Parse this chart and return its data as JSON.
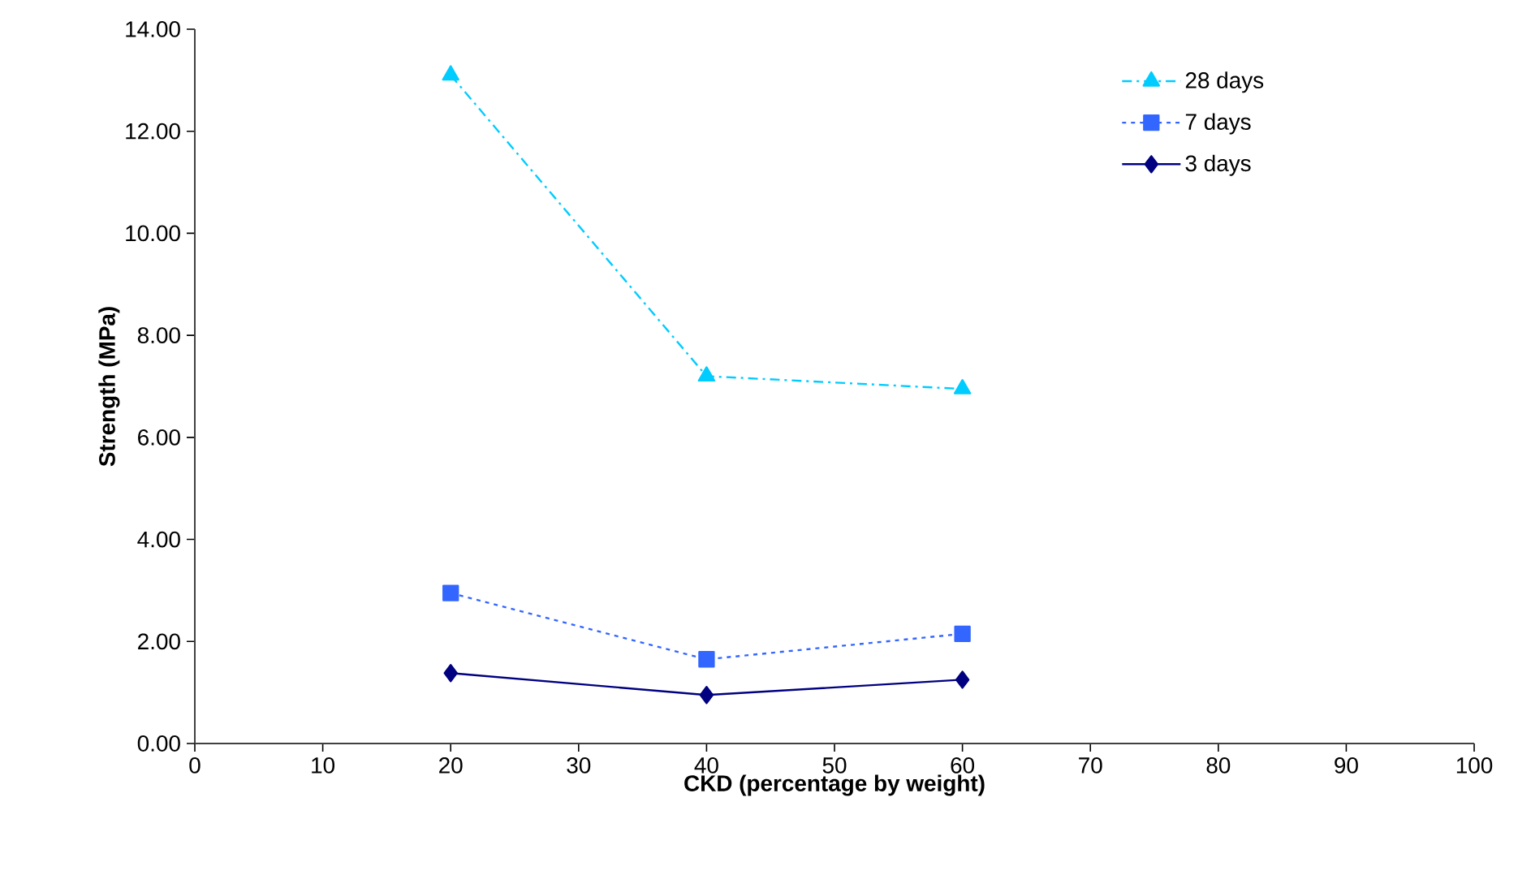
{
  "chart_data": {
    "type": "line",
    "xlabel": "CKD (percentage by weight)",
    "ylabel": "Strength (MPa)",
    "x": [
      20,
      40,
      60
    ],
    "series": [
      {
        "name": "28 days",
        "color": "#00ccff",
        "values": [
          13.1,
          7.2,
          6.95
        ],
        "marker": "triangle",
        "line_style": "dashed"
      },
      {
        "name": "7 days",
        "color": "#3366ff",
        "values": [
          2.95,
          1.65,
          2.15
        ],
        "marker": "square",
        "line_style": "dotted"
      },
      {
        "name": "3 days",
        "color": "#000080",
        "values": [
          1.38,
          0.95,
          1.25
        ],
        "marker": "diamond",
        "line_style": "solid"
      }
    ],
    "xlim": [
      0,
      100
    ],
    "xticks": [
      0,
      10,
      20,
      30,
      40,
      50,
      60,
      70,
      80,
      90,
      100
    ],
    "ylim": [
      0,
      14
    ],
    "yticks": [
      {
        "value": 0,
        "label": "0.00"
      },
      {
        "value": 2,
        "label": "2.00"
      },
      {
        "value": 4,
        "label": "4.00"
      },
      {
        "value": 6,
        "label": "6.00"
      },
      {
        "value": 8,
        "label": "8.00"
      },
      {
        "value": 10,
        "label": "10.00"
      },
      {
        "value": 12,
        "label": "12.00"
      },
      {
        "value": 14,
        "label": "14.00"
      }
    ],
    "grid": false,
    "legend": "top right"
  }
}
